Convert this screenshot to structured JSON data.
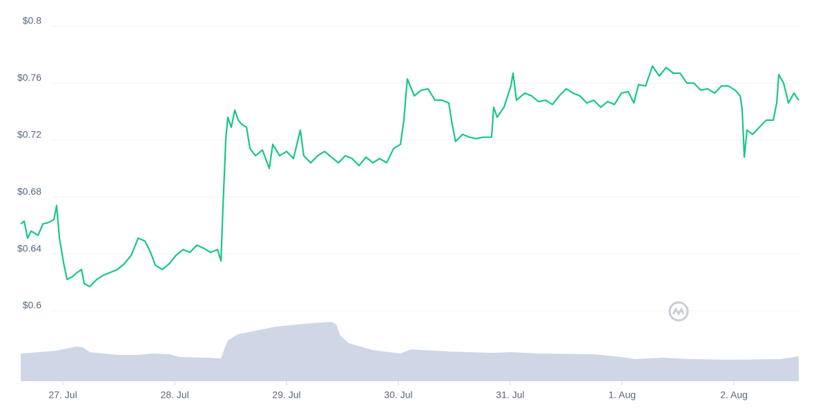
{
  "chart_data": {
    "type": "line",
    "watermark": "CoinMarketCap",
    "xlim": [
      -0.377,
      6.58
    ],
    "xticks": [
      {
        "value": 0,
        "label": "27. Jul"
      },
      {
        "value": 1,
        "label": "28. Jul"
      },
      {
        "value": 2,
        "label": "29. Jul"
      },
      {
        "value": 3,
        "label": "30. Jul"
      },
      {
        "value": 4,
        "label": "31. Jul"
      },
      {
        "value": 5,
        "label": "1. Aug"
      },
      {
        "value": 6,
        "label": "2. Aug"
      }
    ],
    "ylim": [
      0.6,
      0.8
    ],
    "yticks": [
      {
        "value": 0.6,
        "label": "$0.6"
      },
      {
        "value": 0.64,
        "label": "$0.64"
      },
      {
        "value": 0.68,
        "label": "$0.68"
      },
      {
        "value": 0.72,
        "label": "$0.72"
      },
      {
        "value": 0.76,
        "label": "$0.76"
      },
      {
        "value": 0.8,
        "label": "$0.8"
      }
    ],
    "grid": true,
    "color": "#16c784",
    "x": [
      -0.377,
      -0.346,
      -0.315,
      -0.284,
      -0.222,
      -0.179,
      -0.13,
      -0.08,
      -0.056,
      -0.031,
      0.006,
      0.037,
      0.086,
      0.13,
      0.167,
      0.191,
      0.241,
      0.302,
      0.364,
      0.426,
      0.488,
      0.549,
      0.611,
      0.673,
      0.735,
      0.784,
      0.827,
      0.889,
      0.951,
      1.012,
      1.074,
      1.136,
      1.198,
      1.259,
      1.321,
      1.383,
      1.414,
      1.432,
      1.457,
      1.475,
      1.506,
      1.537,
      1.568,
      1.599,
      1.642,
      1.673,
      1.722,
      1.784,
      1.846,
      1.877,
      1.938,
      2.0,
      2.062,
      2.123,
      2.154,
      2.216,
      2.278,
      2.34,
      2.401,
      2.463,
      2.525,
      2.586,
      2.648,
      2.71,
      2.772,
      2.833,
      2.895,
      2.957,
      3.019,
      3.049,
      3.08,
      3.142,
      3.204,
      3.265,
      3.327,
      3.389,
      3.451,
      3.481,
      3.512,
      3.574,
      3.636,
      3.698,
      3.759,
      3.833,
      3.852,
      3.883,
      3.944,
      4.006,
      4.025,
      4.056,
      4.13,
      4.191,
      4.253,
      4.315,
      4.377,
      4.438,
      4.5,
      4.562,
      4.623,
      4.685,
      4.747,
      4.809,
      4.87,
      4.932,
      4.994,
      5.056,
      5.105,
      5.148,
      5.21,
      5.272,
      5.333,
      5.395,
      5.457,
      5.519,
      5.58,
      5.642,
      5.704,
      5.765,
      5.827,
      5.889,
      5.951,
      6.012,
      6.056,
      6.074,
      6.093,
      6.117,
      6.167,
      6.228,
      6.29,
      6.352,
      6.383,
      6.401,
      6.444,
      6.488,
      6.537,
      6.58
    ],
    "values": [
      0.661,
      0.663,
      0.651,
      0.656,
      0.653,
      0.661,
      0.662,
      0.664,
      0.674,
      0.651,
      0.634,
      0.622,
      0.624,
      0.627,
      0.629,
      0.619,
      0.617,
      0.622,
      0.625,
      0.627,
      0.629,
      0.633,
      0.639,
      0.651,
      0.649,
      0.641,
      0.632,
      0.629,
      0.633,
      0.639,
      0.643,
      0.641,
      0.646,
      0.644,
      0.641,
      0.643,
      0.635,
      0.673,
      0.721,
      0.736,
      0.729,
      0.741,
      0.734,
      0.731,
      0.729,
      0.714,
      0.709,
      0.713,
      0.7,
      0.717,
      0.709,
      0.712,
      0.707,
      0.727,
      0.709,
      0.704,
      0.709,
      0.712,
      0.708,
      0.704,
      0.709,
      0.707,
      0.702,
      0.708,
      0.704,
      0.707,
      0.704,
      0.714,
      0.717,
      0.734,
      0.763,
      0.751,
      0.755,
      0.756,
      0.748,
      0.748,
      0.746,
      0.731,
      0.719,
      0.724,
      0.722,
      0.721,
      0.722,
      0.722,
      0.743,
      0.736,
      0.743,
      0.758,
      0.767,
      0.748,
      0.753,
      0.751,
      0.747,
      0.748,
      0.745,
      0.751,
      0.756,
      0.753,
      0.751,
      0.746,
      0.748,
      0.743,
      0.747,
      0.745,
      0.753,
      0.754,
      0.746,
      0.759,
      0.758,
      0.772,
      0.765,
      0.771,
      0.767,
      0.767,
      0.76,
      0.76,
      0.755,
      0.756,
      0.753,
      0.758,
      0.758,
      0.755,
      0.751,
      0.742,
      0.708,
      0.727,
      0.724,
      0.729,
      0.734,
      0.734,
      0.746,
      0.766,
      0.76,
      0.746,
      0.753,
      0.748
    ]
  },
  "volume": {
    "ylim": [
      0,
      102
    ],
    "color": "#cfd6e6",
    "x": [
      -0.377,
      -0.068,
      0.117,
      0.179,
      0.241,
      0.488,
      0.673,
      0.796,
      0.951,
      1.043,
      1.29,
      1.414,
      1.444,
      1.475,
      1.568,
      1.722,
      1.907,
      2.154,
      2.401,
      2.444,
      2.481,
      2.556,
      2.772,
      3.019,
      3.111,
      3.451,
      3.821,
      4.006,
      4.253,
      4.747,
      4.994,
      5.117,
      5.364,
      5.611,
      5.981,
      6.414,
      6.58
    ],
    "values": [
      40,
      44,
      50,
      49,
      42,
      38,
      38,
      40,
      39,
      35,
      34,
      33,
      47,
      59,
      68,
      73,
      79,
      83,
      86,
      82,
      66,
      55,
      45,
      40,
      46,
      43,
      41,
      42,
      40,
      39,
      35,
      32,
      34,
      32,
      31,
      32,
      36
    ]
  }
}
